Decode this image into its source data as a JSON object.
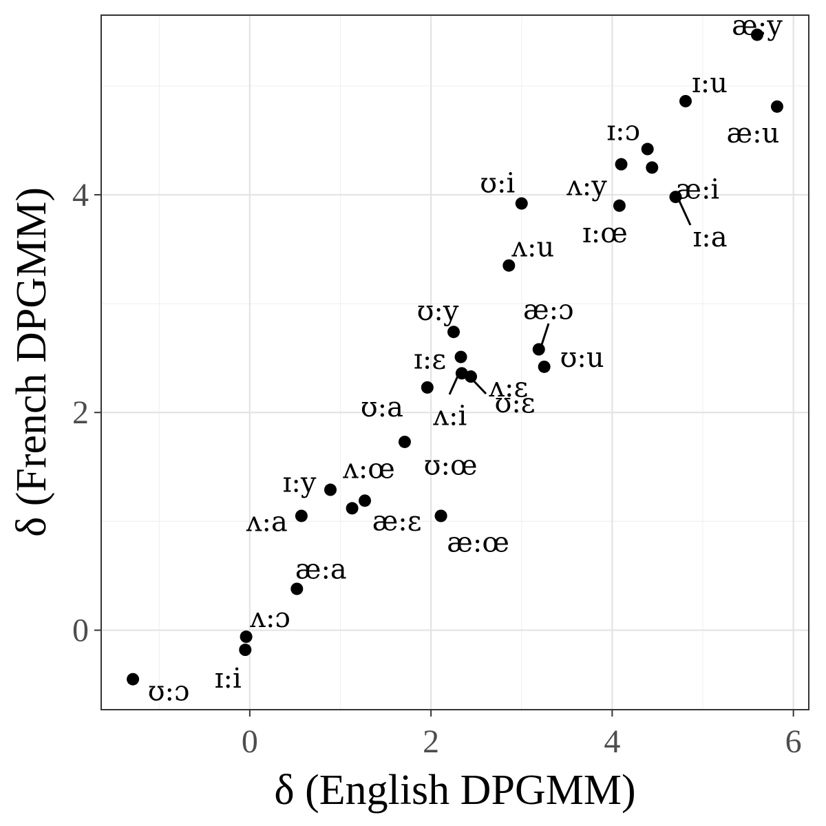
{
  "chart_data": {
    "type": "scatter",
    "xlabel": "δ (English DPGMM)",
    "ylabel": "δ (French DPGMM)",
    "xlim": [
      -1.64,
      6.17
    ],
    "ylim": [
      -0.73,
      5.65
    ],
    "x_ticks": [
      0,
      2,
      4,
      6
    ],
    "y_ticks": [
      0,
      2,
      4
    ],
    "grid": true,
    "legend": "none",
    "points": [
      {
        "label": "æ:y",
        "x": 5.6,
        "y": 5.47
      },
      {
        "label": "ɪ:u",
        "x": 4.81,
        "y": 4.86
      },
      {
        "label": "æ:u",
        "x": 5.82,
        "y": 4.81
      },
      {
        "label": "ɪ:ɔ",
        "x": 4.39,
        "y": 4.42
      },
      {
        "label": "ʌ:y",
        "x": 4.1,
        "y": 4.28
      },
      {
        "label": "æ:i",
        "x": 4.44,
        "y": 4.25
      },
      {
        "label": "ɪ:a",
        "x": 4.7,
        "y": 3.98
      },
      {
        "label": "ɪ:œ",
        "x": 4.08,
        "y": 3.9
      },
      {
        "label": "ʊ:i",
        "x": 3.0,
        "y": 3.92
      },
      {
        "label": "ʌ:u",
        "x": 2.86,
        "y": 3.35
      },
      {
        "label": "ʊ:y",
        "x": 2.25,
        "y": 2.74
      },
      {
        "label": "æ:ɔ",
        "x": 3.19,
        "y": 2.58
      },
      {
        "label": "ʊ:u",
        "x": 3.25,
        "y": 2.42
      },
      {
        "label": "ɪ:ɛ",
        "x": 2.33,
        "y": 2.51
      },
      {
        "label": "ʌ:i",
        "x": 2.34,
        "y": 2.36
      },
      {
        "label": "ʊ:ɛ",
        "x": 2.44,
        "y": 2.33
      },
      {
        "label": "ʌ:ɛ",
        "x": 1.96,
        "y": 2.23
      },
      {
        "label": "ʊ:a",
        "x": 1.71,
        "y": 1.73
      },
      {
        "label": "ɪ:y",
        "x": 0.89,
        "y": 1.29
      },
      {
        "label": "ʌ:œ",
        "x": 1.27,
        "y": 1.19
      },
      {
        "label": "æ:ɛ",
        "x": 1.13,
        "y": 1.12
      },
      {
        "label": "ʊ:œ",
        "x": 2.11,
        "y": 1.05
      },
      {
        "label": "ʌ:a",
        "x": 0.57,
        "y": 1.05
      },
      {
        "label": "æ:œ",
        "x": 2.11,
        "y": 1.05
      },
      {
        "label": "æ:a",
        "x": 0.52,
        "y": 0.38
      },
      {
        "label": "ʌ:ɔ",
        "x": -0.04,
        "y": -0.06
      },
      {
        "label": "ɪ:i",
        "x": -0.05,
        "y": -0.18
      },
      {
        "label": "ʊ:ɔ",
        "x": -1.29,
        "y": -0.45
      }
    ]
  }
}
